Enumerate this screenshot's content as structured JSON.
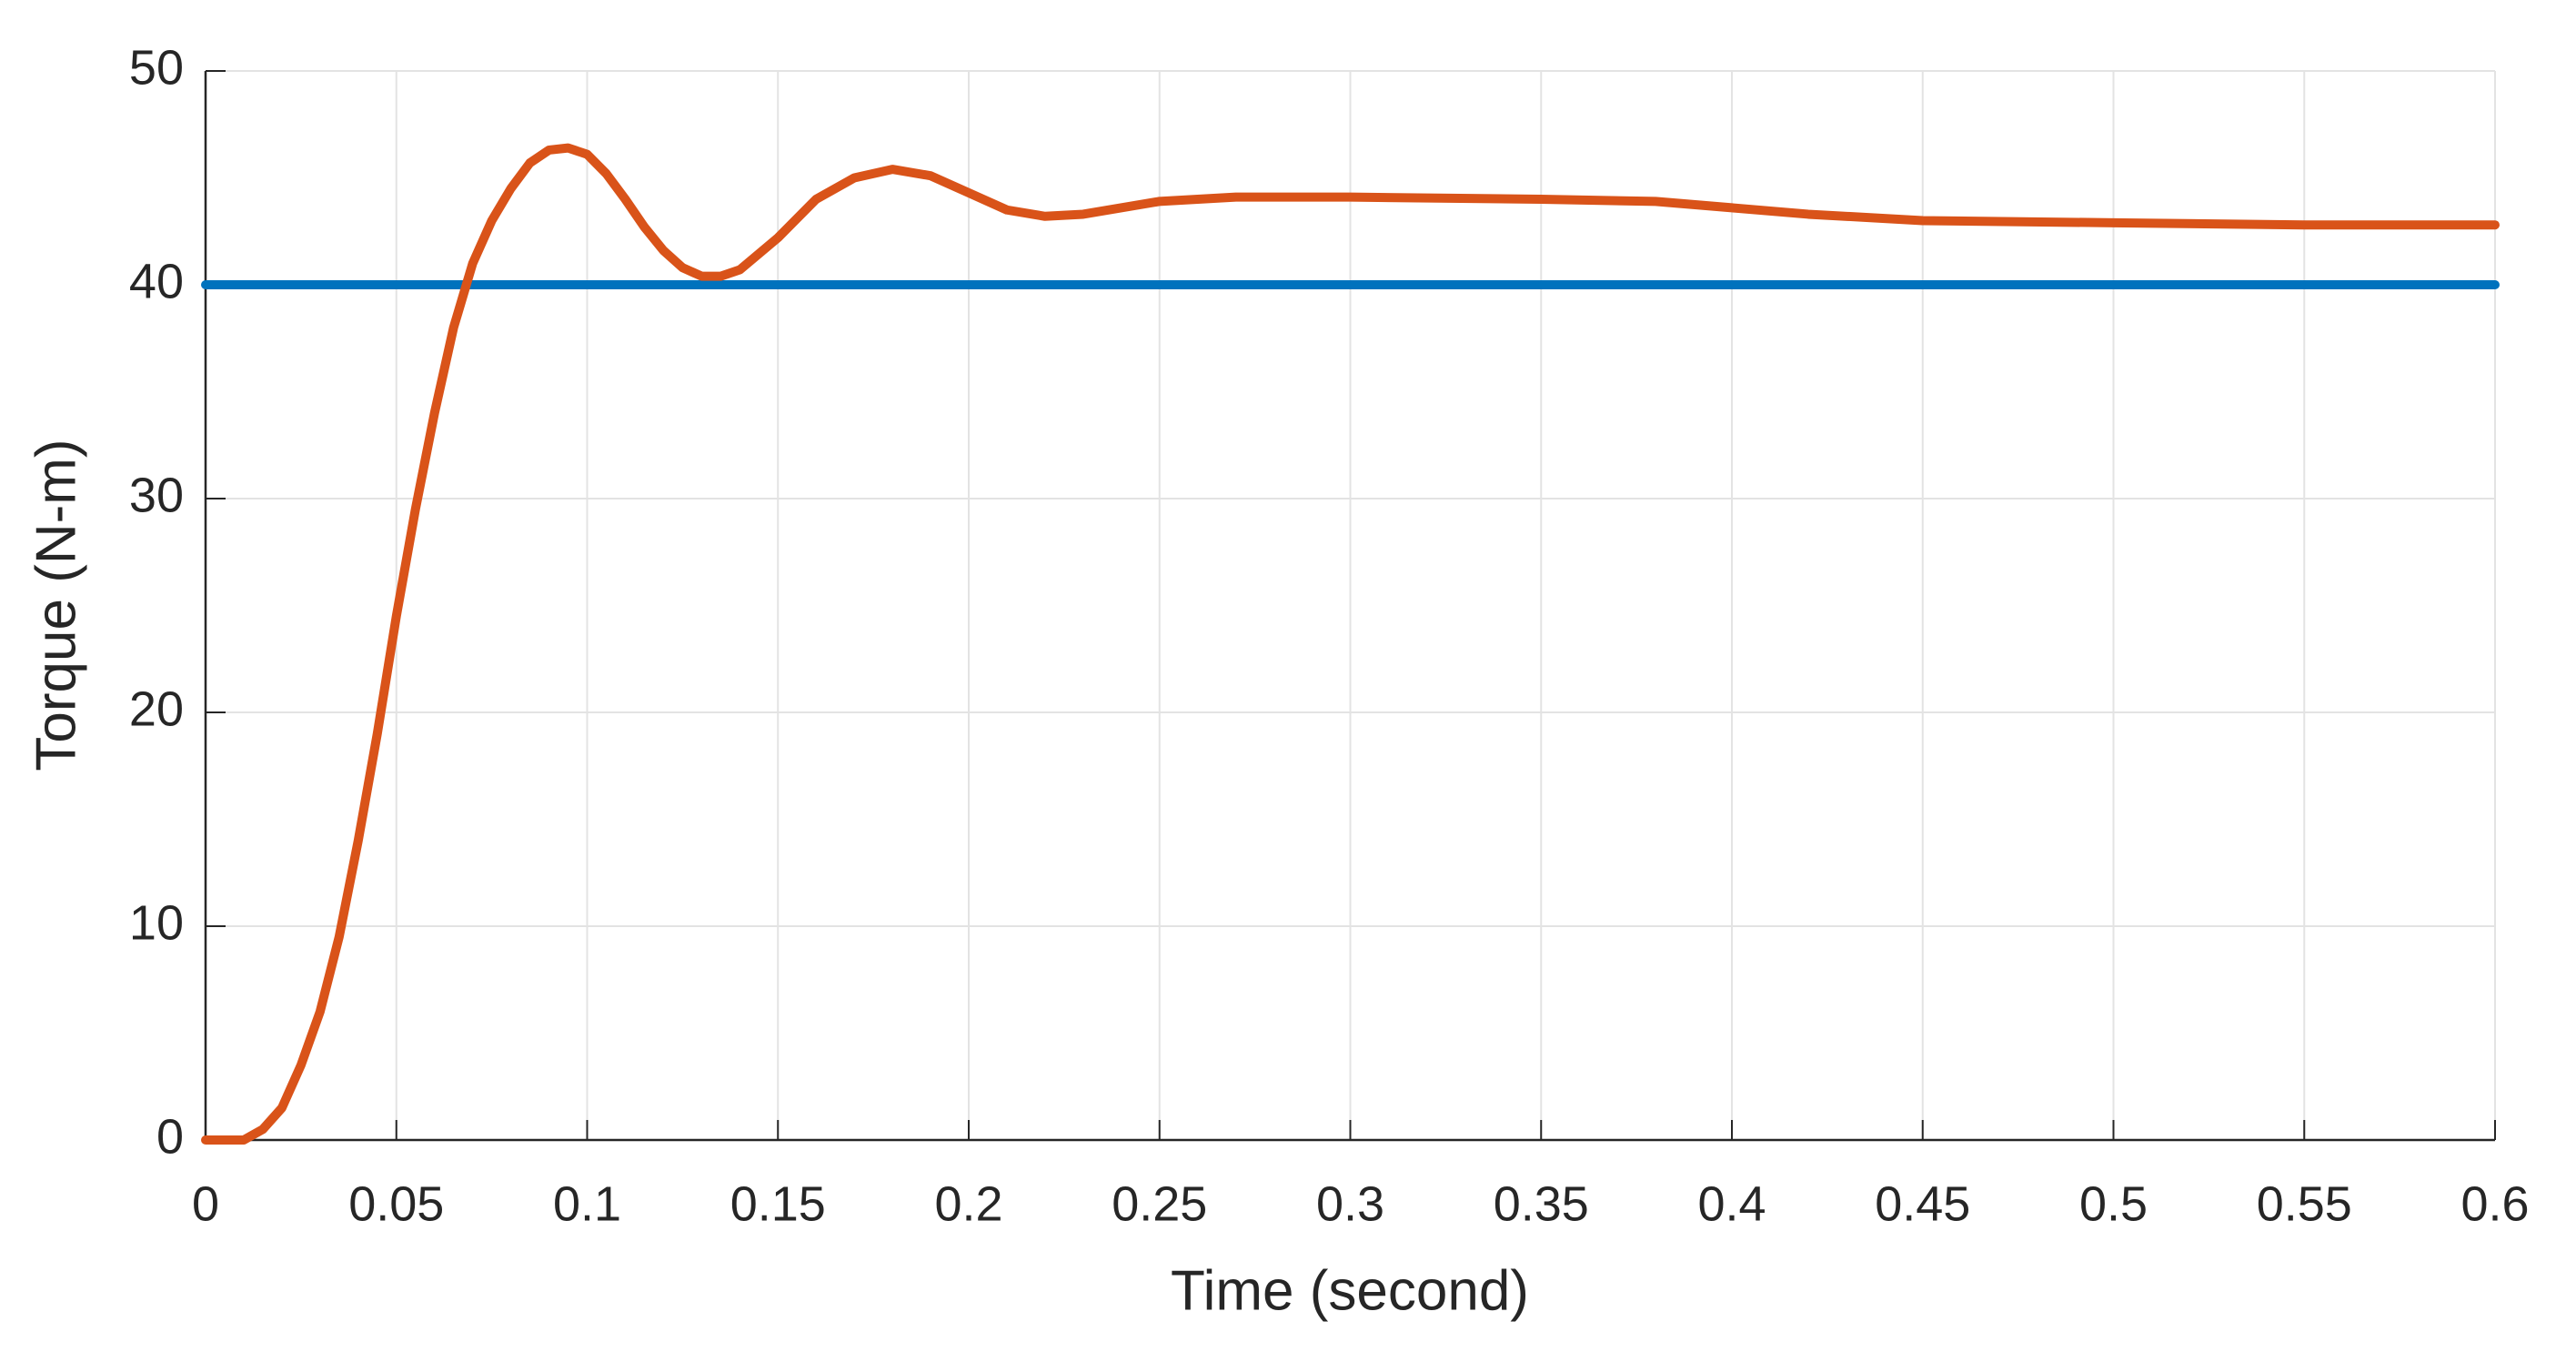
{
  "chart_data": {
    "type": "line",
    "xlabel": "Time (second)",
    "ylabel": "Torque (N-m)",
    "xlim": [
      0,
      0.6
    ],
    "xticks": [
      0,
      0.05,
      0.1,
      0.15,
      0.2,
      0.25,
      0.3,
      0.35,
      0.4,
      0.45,
      0.5,
      0.55,
      0.6
    ],
    "ylim": [
      0,
      50
    ],
    "yticks": [
      0,
      10,
      20,
      30,
      40,
      50
    ],
    "grid": true,
    "series": [
      {
        "color": "#0072bd",
        "x": [
          0,
          0.6
        ],
        "values": [
          40,
          40
        ]
      },
      {
        "color": "#d95319",
        "x": [
          0,
          0.01,
          0.015,
          0.02,
          0.025,
          0.03,
          0.035,
          0.04,
          0.045,
          0.05,
          0.055,
          0.06,
          0.065,
          0.07,
          0.075,
          0.08,
          0.085,
          0.09,
          0.095,
          0.1,
          0.105,
          0.11,
          0.115,
          0.12,
          0.125,
          0.13,
          0.135,
          0.14,
          0.15,
          0.16,
          0.17,
          0.18,
          0.19,
          0.2,
          0.21,
          0.22,
          0.23,
          0.25,
          0.27,
          0.3,
          0.35,
          0.38,
          0.4,
          0.42,
          0.45,
          0.5,
          0.55,
          0.6
        ],
        "values": [
          0,
          0,
          0.5,
          1.5,
          3.5,
          6,
          9.5,
          14,
          19,
          24.5,
          29.5,
          34,
          38,
          41,
          43,
          44.5,
          45.7,
          46.3,
          46.4,
          46.1,
          45.2,
          44,
          42.7,
          41.6,
          40.8,
          40.4,
          40.4,
          40.7,
          42.2,
          44,
          45,
          45.4,
          45.1,
          44.3,
          43.5,
          43.2,
          43.3,
          43.9,
          44.1,
          44.1,
          44,
          43.9,
          43.6,
          43.3,
          43,
          42.9,
          42.8,
          42.8
        ]
      }
    ]
  }
}
